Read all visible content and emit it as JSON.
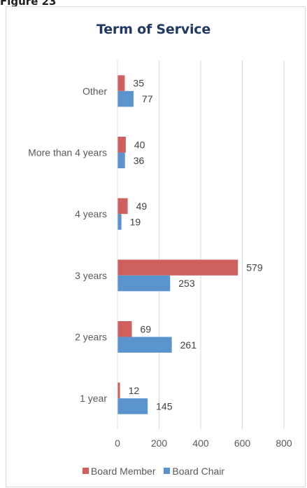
{
  "figure_label": "Figure 23",
  "chart_data": {
    "type": "bar",
    "orientation": "horizontal",
    "title": "Term of Service",
    "categories": [
      "Other",
      "More than 4 years",
      "4 years",
      "3 years",
      "2 years",
      "1 year"
    ],
    "series": [
      {
        "name": "Board Member",
        "color": "#d0605e",
        "values": [
          35,
          40,
          49,
          579,
          69,
          12
        ]
      },
      {
        "name": "Board Chair",
        "color": "#5b93cf",
        "values": [
          77,
          36,
          19,
          253,
          261,
          145
        ]
      }
    ],
    "xlim": [
      0,
      800
    ],
    "xticks": [
      0,
      200,
      400,
      600,
      800
    ],
    "grid": "vertical",
    "legend_position": "bottom"
  }
}
